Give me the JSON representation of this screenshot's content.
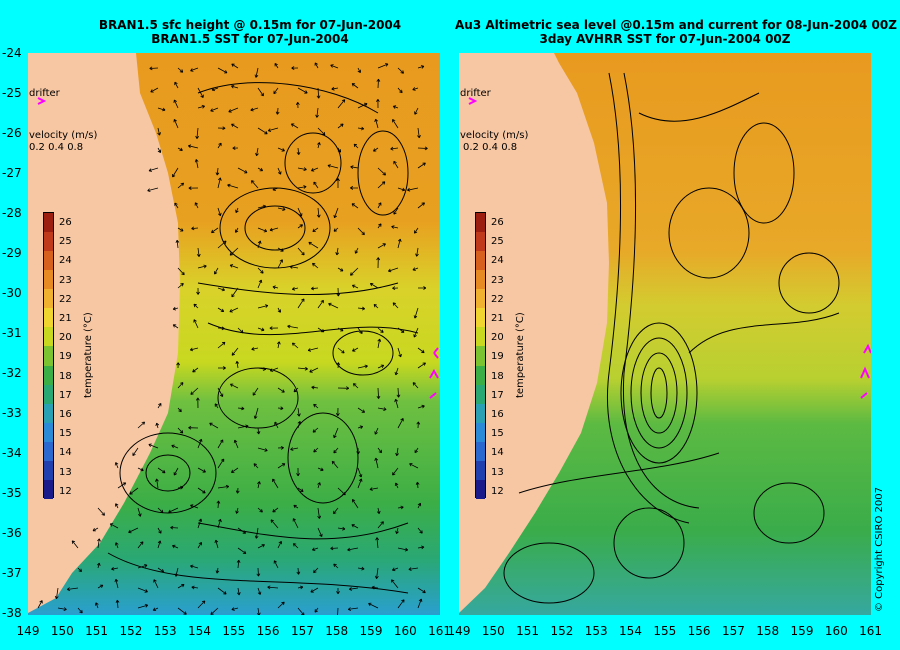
{
  "left_panel": {
    "title_line1": "BRAN1.5 sfc height @ 0.15m for 07-Jun-2004",
    "title_line2": "BRAN1.5 SST for 07-Jun-2004"
  },
  "right_panel": {
    "title_line1": "Au3 Altimetric sea level  @0.15m and current for 08-Jun-2004 00Z",
    "title_line2": "3day AVHRR SST for 07-Jun-2004 00Z"
  },
  "legend": {
    "drifter_label": "drifter",
    "velocity_label": "velocity (m/s)",
    "velocity_values": [
      "0.2",
      "0.4",
      "0.8"
    ],
    "colorbar_title": "temperature (°C)",
    "colorbar_ticks": [
      "26",
      "25",
      "24",
      "23",
      "22",
      "21",
      "20",
      "19",
      "18",
      "17",
      "16",
      "15",
      "14",
      "13",
      "12"
    ]
  },
  "axes": {
    "y_ticks": [
      "-24",
      "-25",
      "-26",
      "-27",
      "-28",
      "-29",
      "-30",
      "-31",
      "-32",
      "-33",
      "-34",
      "-35",
      "-36",
      "-37",
      "-38"
    ],
    "x_ticks": [
      "149",
      "150",
      "151",
      "152",
      "153",
      "154",
      "155",
      "156",
      "157",
      "158",
      "159",
      "160",
      "161"
    ]
  },
  "copyright": "© Copyright CSIRO 2007",
  "colors": {
    "background": "#00ffff",
    "land": "#f7c7a3",
    "drifter": "#ff00ff"
  }
}
